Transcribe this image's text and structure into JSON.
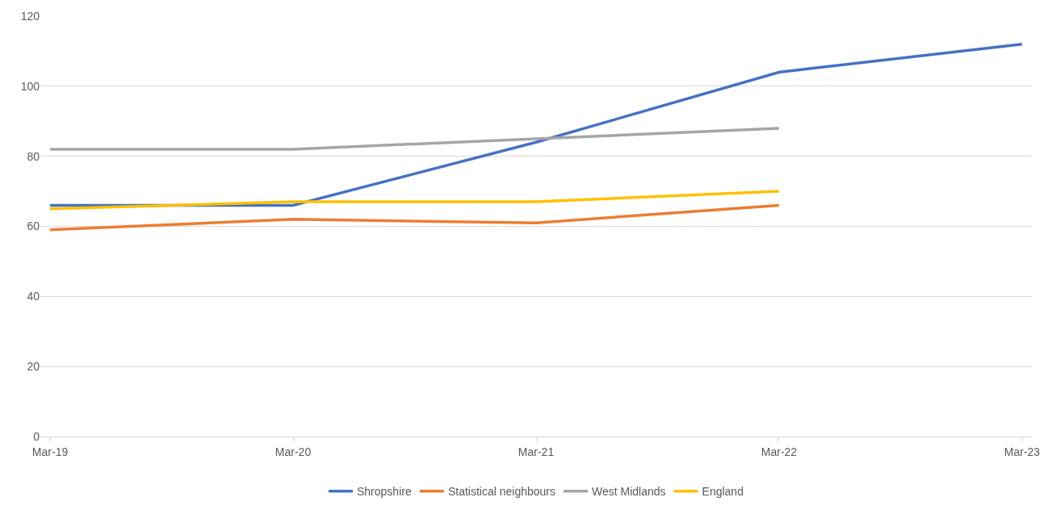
{
  "chart_data": {
    "type": "line",
    "categories": [
      "Mar-19",
      "Mar-20",
      "Mar-21",
      "Mar-22",
      "Mar-23"
    ],
    "series": [
      {
        "name": "Shropshire",
        "color": "#4472c4",
        "values": [
          66,
          66,
          84,
          104,
          112
        ]
      },
      {
        "name": "Statistical neighbours",
        "color": "#ed7d31",
        "values": [
          59,
          62,
          61,
          66,
          null
        ]
      },
      {
        "name": "West Midlands",
        "color": "#a5a5a5",
        "values": [
          82,
          82,
          85,
          88,
          null
        ]
      },
      {
        "name": "England",
        "color": "#ffc000",
        "values": [
          65,
          67,
          67,
          70,
          null
        ]
      }
    ],
    "ylim": [
      0,
      120
    ],
    "yticks": [
      0,
      20,
      40,
      60,
      80,
      100,
      120
    ],
    "grid": "y",
    "legend": "bottom",
    "marker": "none",
    "line_style": "solid"
  }
}
